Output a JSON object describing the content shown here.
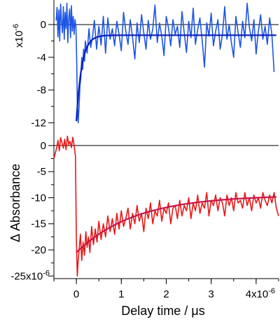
{
  "chart_data": [
    {
      "type": "line",
      "panel": "top",
      "ylabel_multiplier": "x10",
      "ylabel_exponent": "-6",
      "ylim": [
        -13.5,
        3.0
      ],
      "yticks": [
        0,
        -4,
        -8,
        -12
      ],
      "ytick_labels": [
        "0",
        "-4",
        "-8",
        "-12"
      ],
      "xlim": [
        -5e-07,
        4.5e-06
      ],
      "zero_line": true,
      "series": [
        {
          "role": "data",
          "color": "#1e55e6",
          "x": [
            -4.5e-07,
            -4.3e-07,
            -4.1e-07,
            -3.9e-07,
            -3.7e-07,
            -3.5e-07,
            -3.3e-07,
            -3.1e-07,
            -2.9e-07,
            -2.7e-07,
            -2.5e-07,
            -2.3e-07,
            -2.1e-07,
            -1.9e-07,
            -1.7e-07,
            -1.5e-07,
            -1.3e-07,
            -1.1e-07,
            -9e-08,
            -7e-08,
            -5e-08,
            -3e-08,
            -1e-08,
            0.0,
            1e-08,
            2e-08,
            4e-08,
            6e-08,
            8e-08,
            1e-07,
            1.2e-07,
            1.4e-07,
            1.6e-07,
            1.8e-07,
            2e-07,
            2.4e-07,
            2.8e-07,
            3.2e-07,
            3.6e-07,
            4e-07,
            4.5e-07,
            5e-07,
            5.5e-07,
            6e-07,
            6.5e-07,
            7e-07,
            7.5e-07,
            8e-07,
            8.5e-07,
            9e-07,
            9.5e-07,
            1e-06,
            1.05e-06,
            1.1e-06,
            1.15e-06,
            1.2e-06,
            1.25e-06,
            1.3e-06,
            1.35e-06,
            1.4e-06,
            1.45e-06,
            1.5e-06,
            1.55e-06,
            1.6e-06,
            1.65e-06,
            1.7e-06,
            1.75e-06,
            1.8e-06,
            1.85e-06,
            1.9e-06,
            1.95e-06,
            2e-06,
            2.05e-06,
            2.1e-06,
            2.15e-06,
            2.2e-06,
            2.25e-06,
            2.3e-06,
            2.35e-06,
            2.4e-06,
            2.45e-06,
            2.5e-06,
            2.55e-06,
            2.6e-06,
            2.65e-06,
            2.7e-06,
            2.75e-06,
            2.8e-06,
            2.85e-06,
            2.9e-06,
            2.95e-06,
            3e-06,
            3.05e-06,
            3.1e-06,
            3.15e-06,
            3.2e-06,
            3.25e-06,
            3.3e-06,
            3.35e-06,
            3.4e-06,
            3.45e-06,
            3.5e-06,
            3.55e-06,
            3.6e-06,
            3.65e-06,
            3.7e-06,
            3.75e-06,
            3.8e-06,
            3.85e-06,
            3.9e-06,
            3.95e-06,
            4e-06,
            4.05e-06,
            4.1e-06,
            4.15e-06,
            4.2e-06,
            4.25e-06,
            4.3e-06,
            4.35e-06,
            4.4e-06
          ],
          "y": [
            0.5,
            2.1,
            -1.5,
            1.8,
            -2.0,
            2.5,
            0.3,
            -1.0,
            2.2,
            -1.8,
            1.5,
            -0.5,
            2.6,
            -2.2,
            0.8,
            1.9,
            -1.6,
            2.3,
            -0.8,
            1.0,
            -1.2,
            0.6,
            -0.3,
            -2.5,
            -5.0,
            -9.5,
            -12.0,
            -10.0,
            -7.5,
            -6.5,
            -4.0,
            -5.5,
            -3.0,
            -4.5,
            -2.0,
            -3.5,
            -0.5,
            -2.8,
            -1.5,
            0.5,
            -3.0,
            -0.2,
            -2.5,
            1.0,
            -3.5,
            0.8,
            -1.8,
            -0.5,
            -2.6,
            0.4,
            -1.2,
            -3.2,
            1.5,
            -0.8,
            -2.4,
            0.6,
            -1.6,
            -4.2,
            0.2,
            -2.2,
            1.2,
            -1.0,
            -3.0,
            0.5,
            -1.8,
            -0.6,
            2.4,
            -2.2,
            0.2,
            -1.4,
            -3.8,
            1.0,
            -0.4,
            -2.6,
            0.6,
            -1.2,
            -0.2,
            -2.8,
            1.6,
            -1.0,
            -3.4,
            0.4,
            -1.6,
            2.0,
            -2.4,
            -0.6,
            0.8,
            -2.0,
            -5.2,
            0.2,
            -1.4,
            1.4,
            -2.6,
            -0.8,
            0.6,
            -3.0,
            -1.2,
            2.2,
            -1.8,
            0.0,
            -2.2,
            -4.0,
            1.0,
            -1.0,
            -2.8,
            0.4,
            -1.6,
            2.6,
            -0.4,
            -2.0,
            0.6,
            -3.6,
            -0.8,
            1.2,
            -1.8,
            -0.2,
            -2.4,
            0.8,
            -1.2,
            -5.8
          ]
        },
        {
          "role": "fit",
          "color": "#0a1fb8",
          "model": "exp_recovery",
          "t0": 0.0,
          "amplitude": -10.5,
          "tau": 1.2e-07,
          "offset": -1.3
        }
      ]
    },
    {
      "type": "line",
      "panel": "bottom",
      "ylabel": "Δ Absorbance",
      "ylim": [
        -2.55e-05,
        2e-06
      ],
      "yticks": [
        0,
        -5e-06,
        -1e-05,
        -1.5e-05,
        -2e-05,
        -2.5e-05
      ],
      "ytick_labels": [
        "0",
        "-5",
        "-10",
        "-15",
        "-20",
        "-25x10"
      ],
      "ytick_exponent": "-6",
      "xlim": [
        -5e-07,
        4.5e-06
      ],
      "zero_line": true,
      "xlabel": "Delay time / μs",
      "xticks": [
        0,
        1e-06,
        2e-06,
        3e-06,
        4e-06
      ],
      "xtick_labels": [
        "0",
        "1",
        "2",
        "3",
        "4x10"
      ],
      "xtick_exponent": "-6",
      "series": [
        {
          "role": "data",
          "color": "#e81818",
          "x": [
            -5e-07,
            -4.7e-07,
            -4.4e-07,
            -4.1e-07,
            -3.8e-07,
            -3.5e-07,
            -3.2e-07,
            -2.9e-07,
            -2.6e-07,
            -2.3e-07,
            -2e-07,
            -1.7e-07,
            -1.4e-07,
            -1.1e-07,
            -8e-08,
            -5e-08,
            -2e-08,
            0.0,
            2e-08,
            4e-08,
            6e-08,
            9e-08,
            1.2e-07,
            1.5e-07,
            1.8e-07,
            2.1e-07,
            2.4e-07,
            2.7e-07,
            3e-07,
            3.4e-07,
            3.8e-07,
            4.2e-07,
            4.6e-07,
            5e-07,
            5.5e-07,
            6e-07,
            6.5e-07,
            7e-07,
            7.5e-07,
            8e-07,
            8.5e-07,
            9e-07,
            9.5e-07,
            1e-06,
            1.05e-06,
            1.1e-06,
            1.15e-06,
            1.2e-06,
            1.25e-06,
            1.3e-06,
            1.35e-06,
            1.4e-06,
            1.45e-06,
            1.5e-06,
            1.55e-06,
            1.6e-06,
            1.65e-06,
            1.7e-06,
            1.75e-06,
            1.8e-06,
            1.85e-06,
            1.9e-06,
            1.95e-06,
            2e-06,
            2.05e-06,
            2.1e-06,
            2.15e-06,
            2.2e-06,
            2.25e-06,
            2.3e-06,
            2.35e-06,
            2.4e-06,
            2.45e-06,
            2.5e-06,
            2.55e-06,
            2.6e-06,
            2.65e-06,
            2.7e-06,
            2.75e-06,
            2.8e-06,
            2.85e-06,
            2.9e-06,
            2.95e-06,
            3e-06,
            3.05e-06,
            3.1e-06,
            3.15e-06,
            3.2e-06,
            3.25e-06,
            3.3e-06,
            3.35e-06,
            3.4e-06,
            3.45e-06,
            3.5e-06,
            3.55e-06,
            3.6e-06,
            3.65e-06,
            3.7e-06,
            3.75e-06,
            3.8e-06,
            3.85e-06,
            3.9e-06,
            3.95e-06,
            4e-06,
            4.05e-06,
            4.1e-06,
            4.15e-06,
            4.2e-06,
            4.25e-06,
            4.3e-06,
            4.35e-06,
            4.4e-06,
            4.45e-06,
            4.5e-06
          ],
          "y": [
            -2.5e-06,
            -1.5e-06,
            -5e-07,
            1e-06,
            -1e-06,
            1.5e-06,
            5e-07,
            -5e-07,
            1.2e-06,
            -8e-07,
            1.8e-06,
            2e-07,
            8e-07,
            -4e-07,
            1.6e-06,
            0.0,
            -2e-06,
            -1.8e-05,
            -2.5e-05,
            -2.2e-05,
            -2e-05,
            -1.7e-05,
            -2.2e-05,
            -1.85e-05,
            -2.1e-05,
            -1.65e-05,
            -1.95e-05,
            -1.75e-05,
            -2.05e-05,
            -1.55e-05,
            -1.9e-05,
            -1.6e-05,
            -1.85e-05,
            -1.45e-05,
            -1.8e-05,
            -1.5e-05,
            -1.75e-05,
            -1.35e-05,
            -1.65e-05,
            -1.4e-05,
            -1.7e-05,
            -1.3e-05,
            -1.6e-05,
            -1.25e-05,
            -1.55e-05,
            -1.4e-05,
            -1.2e-05,
            -1.6e-05,
            -1.3e-05,
            -1.5e-05,
            -1.15e-05,
            -1.45e-05,
            -1.3e-05,
            -1.65e-05,
            -1.2e-05,
            -1.4e-05,
            -1.1e-05,
            -1.5e-05,
            -1.25e-05,
            -1.35e-05,
            -1.05e-05,
            -1.45e-05,
            -1.2e-05,
            -1.3e-05,
            -1.1e-05,
            -1.5e-05,
            -1.2e-05,
            -1.15e-05,
            -1.4e-05,
            -1.05e-05,
            -1.35e-05,
            -1.15e-05,
            -1.25e-05,
            -1e-05,
            -1.4e-05,
            -1.1e-05,
            -1.25e-05,
            -9.5e-06,
            -1.3e-05,
            -1.1e-05,
            -1.2e-05,
            -9e-06,
            -1.35e-05,
            -1.05e-05,
            -1.15e-05,
            -9.5e-06,
            -1.25e-05,
            -1e-05,
            -1.1e-05,
            -1.35e-05,
            -9.5e-06,
            -1.15e-05,
            -1e-05,
            -1.25e-05,
            -9e-06,
            -1.1e-05,
            -1.05e-05,
            -1.2e-05,
            -9e-06,
            -1.15e-05,
            -1e-05,
            -1.25e-05,
            -9.5e-06,
            -1.1e-05,
            -1e-05,
            -1.2e-05,
            -9e-06,
            -1.05e-05,
            -1.15e-05,
            -9.5e-06,
            -1.1e-05,
            -9e-06,
            -1.2e-05,
            -1.35e-05
          ]
        },
        {
          "role": "fit",
          "color": "#c8144a",
          "model": "exp_recovery",
          "t0": 0.0,
          "amplitude": -1.1e-05,
          "tau": 1.3e-06,
          "offset": -9.5e-06
        }
      ]
    }
  ]
}
